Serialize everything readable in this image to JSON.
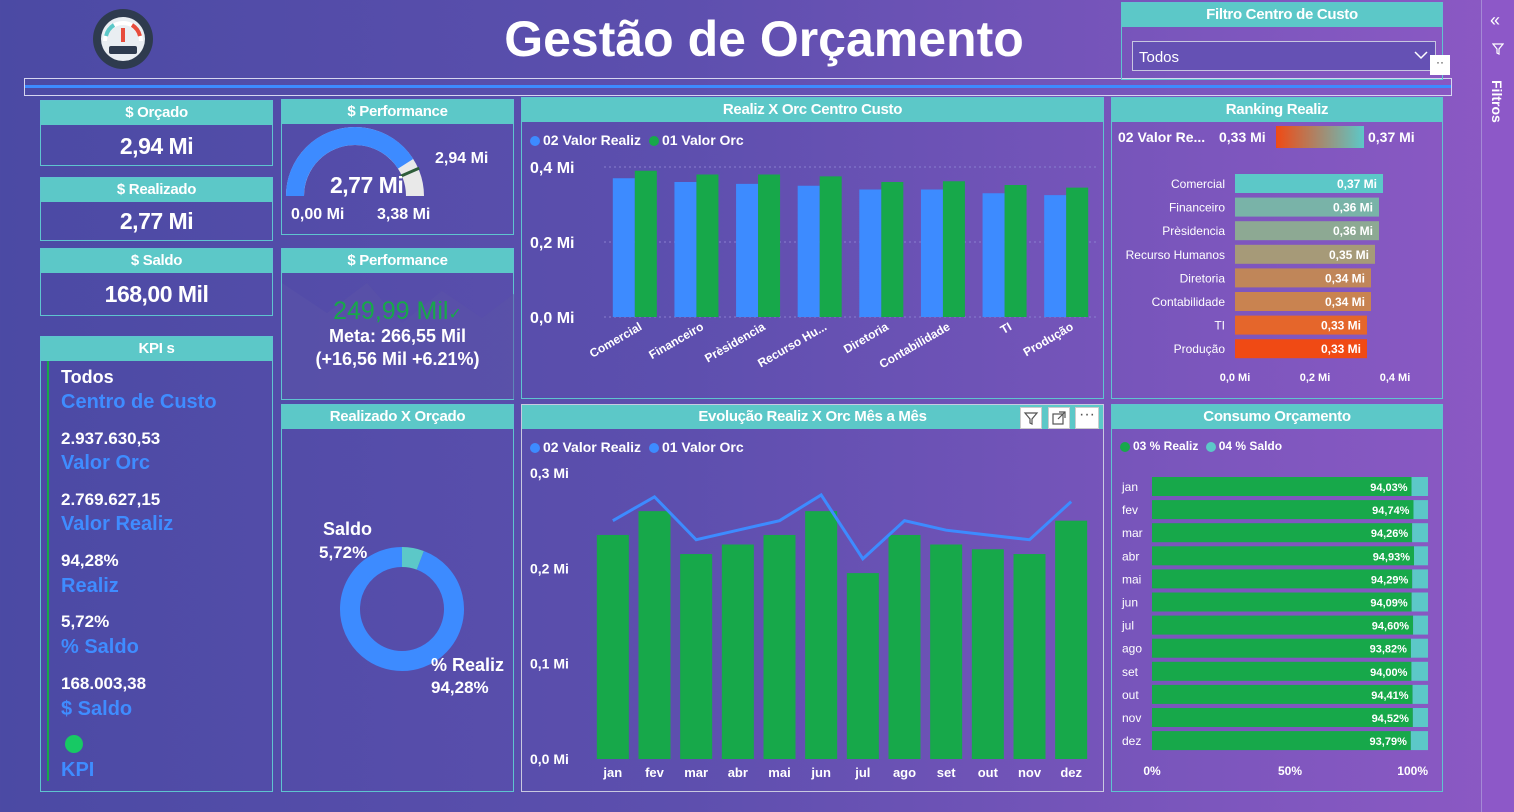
{
  "title": "Gestão de Orçamento",
  "filter": {
    "title": "Filtro Centro de Custo",
    "selected": "Todos"
  },
  "side_pane": {
    "label": "Filtros"
  },
  "cards": {
    "orcado": {
      "title": "$ Orçado",
      "value": "2,94 Mi"
    },
    "realizado": {
      "title": "$ Realizado",
      "value": "2,77 Mi"
    },
    "saldo": {
      "title": "$ Saldo",
      "value": "168,00 Mil"
    }
  },
  "gauge": {
    "title": "$ Performance",
    "value_label": "2,77 Mi",
    "target_label": "2,94 Mi",
    "min_label": "0,00 Mi",
    "max_label": "3,38 Mi",
    "value": 2.77,
    "target": 2.94,
    "min": 0,
    "max": 3.38
  },
  "performance_kpi": {
    "title": "$ Performance",
    "value": "249,99 Mil",
    "meta": "Meta: 266,55 Mil",
    "delta": "(+16,56 Mil +6.21%)"
  },
  "kpis": {
    "title": "KPI s",
    "filter_value": "Todos",
    "filter_label": "Centro de Custo",
    "orc_value": "2.937.630,53",
    "orc_label": "Valor Orc",
    "realiz_value": "2.769.627,15",
    "realiz_label": "Valor Realiz",
    "pct_realiz_value": "94,28%",
    "pct_realiz_label": "Realiz",
    "pct_saldo_value": "5,72%",
    "pct_saldo_label": "% Saldo",
    "saldo_value": "168.003,38",
    "saldo_label": "$ Saldo",
    "status_label": "KPI",
    "status_color": "#17c964"
  },
  "donut": {
    "title": "Realizado X Orçado",
    "saldo_label": "Saldo",
    "saldo_value": "5,72%",
    "realiz_label": "% Realiz",
    "realiz_value": "94,28%",
    "saldo_pct": 5.72,
    "realiz_pct": 94.28,
    "colors": {
      "realiz": "#3d8bff",
      "saldo": "#5cc8c8"
    }
  },
  "chart_data": [
    {
      "type": "bar",
      "title": "Realiz X Orc Centro Custo",
      "categories": [
        "Comercial",
        "Financeiro",
        "Prèsidencia",
        "Recurso Hu...",
        "Diretoria",
        "Contabilidade",
        "TI",
        "Produção"
      ],
      "series": [
        {
          "name": "02 Valor Realiz",
          "color": "#3d8bff",
          "values": [
            0.37,
            0.36,
            0.355,
            0.35,
            0.34,
            0.34,
            0.33,
            0.325
          ]
        },
        {
          "name": "01 Valor Orc",
          "color": "#17a84a",
          "values": [
            0.39,
            0.38,
            0.38,
            0.375,
            0.36,
            0.362,
            0.352,
            0.345
          ]
        }
      ],
      "yticks": [
        "0,0 Mi",
        "0,2 Mi",
        "0,4 Mi"
      ],
      "ylim": [
        0,
        0.4
      ]
    },
    {
      "type": "bar",
      "title": "Ranking Realiz",
      "legend_label": "02 Valor Re...",
      "legend_min": "0,33 Mi",
      "legend_max": "0,37 Mi",
      "categories": [
        "Comercial",
        "Financeiro",
        "Prèsidencia",
        "Recurso Humanos",
        "Diretoria",
        "Contabilidade",
        "TI",
        "Produção"
      ],
      "values": [
        0.37,
        0.36,
        0.36,
        0.35,
        0.34,
        0.34,
        0.33,
        0.33
      ],
      "labels": [
        "0,37 Mi",
        "0,36 Mi",
        "0,36 Mi",
        "0,35 Mi",
        "0,34 Mi",
        "0,34 Mi",
        "0,33 Mi",
        "0,33 Mi"
      ],
      "colors": [
        "#5cc8c8",
        "#79b3a8",
        "#8da993",
        "#a69a78",
        "#c08659",
        "#c98350",
        "#e5662b",
        "#f04a14"
      ],
      "xticks": [
        "0,0 Mi",
        "0,2 Mi",
        "0,4 Mi"
      ],
      "xlim": [
        0,
        0.4
      ]
    },
    {
      "type": "bar",
      "title": "Evolução Realiz X Orc Mês a Mês",
      "categories": [
        "jan",
        "fev",
        "mar",
        "abr",
        "mai",
        "jun",
        "jul",
        "ago",
        "set",
        "out",
        "nov",
        "dez"
      ],
      "series": [
        {
          "name": "02 Valor Realiz",
          "color": "#17a84a",
          "values": [
            0.235,
            0.26,
            0.215,
            0.225,
            0.235,
            0.26,
            0.195,
            0.235,
            0.225,
            0.22,
            0.215,
            0.25
          ]
        },
        {
          "name": "01 Valor Orc",
          "color": "#3d8bff",
          "values": [
            0.25,
            0.275,
            0.23,
            0.24,
            0.25,
            0.277,
            0.21,
            0.25,
            0.24,
            0.235,
            0.23,
            0.27
          ]
        }
      ],
      "yticks": [
        "0,0 Mi",
        "0,1 Mi",
        "0,2 Mi",
        "0,3 Mi"
      ],
      "ylim": [
        0,
        0.3
      ]
    },
    {
      "type": "bar",
      "title": "Consumo Orçamento",
      "categories": [
        "jan",
        "fev",
        "mar",
        "abr",
        "mai",
        "jun",
        "jul",
        "ago",
        "set",
        "out",
        "nov",
        "dez"
      ],
      "series": [
        {
          "name": "03 % Realiz",
          "color": "#17a84a",
          "values": [
            94.03,
            94.74,
            94.26,
            94.93,
            94.29,
            94.09,
            94.6,
            93.82,
            94.0,
            94.41,
            94.52,
            93.79
          ]
        },
        {
          "name": "04 % Saldo",
          "color": "#5cc8c8"
        }
      ],
      "labels": [
        "94,03%",
        "94,74%",
        "94,26%",
        "94,93%",
        "94,29%",
        "94,09%",
        "94,60%",
        "93,82%",
        "94,00%",
        "94,41%",
        "94,52%",
        "93,79%"
      ],
      "xticks": [
        "0%",
        "50%",
        "100%"
      ],
      "xlim": [
        0,
        100
      ]
    }
  ]
}
